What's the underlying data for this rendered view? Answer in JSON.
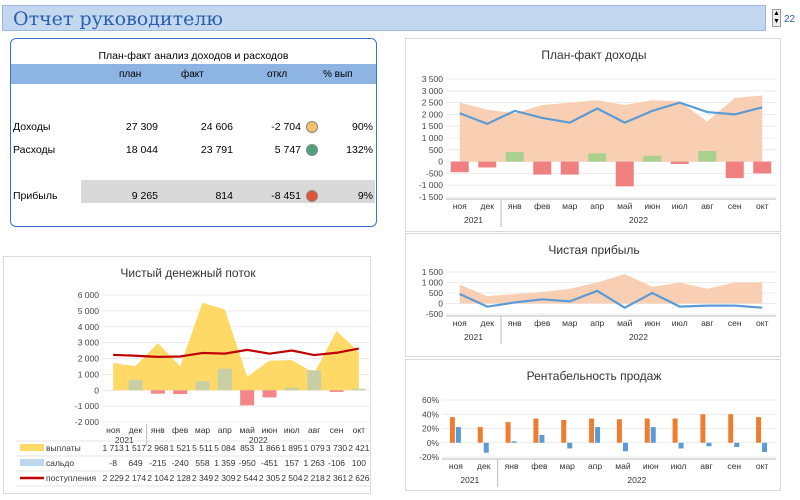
{
  "header": {
    "title": "Отчет руководителю",
    "page": "22",
    "spin_up": "▲",
    "spin_down": "▼"
  },
  "summary": {
    "title": "План-факт анализ доходов и расходов",
    "columns": [
      "план",
      "факт",
      "откл",
      "% вып"
    ],
    "rows": [
      {
        "label": "Доходы",
        "plan": "27 309",
        "fact": "24 606",
        "dev": "-2 704",
        "status": "#f2c36b",
        "pct": "90%"
      },
      {
        "label": "Расходы",
        "plan": "18 044",
        "fact": "23 791",
        "dev": "5 747",
        "status": "#4fa37b",
        "pct": "132%"
      },
      {
        "label": "Прибыль",
        "plan": "9 265",
        "fact": "814",
        "dev": "-8 451",
        "status": "#e0533a",
        "pct": "9%"
      }
    ]
  },
  "months": [
    "ноя",
    "дек",
    "янв",
    "фев",
    "мар",
    "апр",
    "май",
    "июн",
    "июл",
    "авг",
    "сен",
    "окт"
  ],
  "years": [
    "2021",
    "2022"
  ],
  "chart_data": [
    {
      "type": "area",
      "title": "План-факт доходы",
      "ylim": [
        -1500,
        3500
      ],
      "yticks": [
        "3 500",
        "3 000",
        "2 500",
        "2 000",
        "1 500",
        "1 000",
        "500",
        "0",
        "-500",
        "-1 000",
        "-1 500"
      ],
      "series": [
        {
          "name": "",
          "kind": "area",
          "values": [
            2500,
            2200,
            2050,
            2400,
            2500,
            2600,
            2400,
            2600,
            2550,
            1700,
            2700,
            2800
          ]
        },
        {
          "name": "",
          "kind": "line",
          "values": [
            2050,
            1600,
            2150,
            1850,
            1650,
            2250,
            1650,
            2150,
            2500,
            2100,
            2000,
            2300
          ]
        },
        {
          "name": "",
          "kind": "bar",
          "values": [
            -450,
            -250,
            400,
            -550,
            -550,
            350,
            -1050,
            250,
            -100,
            450,
            -700,
            -500
          ]
        }
      ],
      "colors": {
        "area": "#f9cfb4",
        "line": "#5b9bd5",
        "pos": "#a9d18e",
        "neg": "#f07f7f"
      }
    },
    {
      "type": "area",
      "title": "Чистая прибыль",
      "ylim": [
        -500,
        1500
      ],
      "yticks": [
        "1 500",
        "1 000",
        "500",
        "0",
        "-500"
      ],
      "series": [
        {
          "name": "",
          "kind": "area",
          "values": [
            900,
            350,
            450,
            550,
            700,
            1000,
            1400,
            800,
            1000,
            700,
            1000,
            1000
          ]
        },
        {
          "name": "",
          "kind": "line",
          "values": [
            450,
            -150,
            50,
            200,
            100,
            600,
            -200,
            500,
            -150,
            -100,
            -100,
            -200
          ]
        }
      ],
      "colors": {
        "area": "#f9cfb4",
        "line": "#5b9bd5"
      }
    },
    {
      "type": "bar",
      "title": "Рентабельность продаж",
      "ylim": [
        -20,
        60
      ],
      "yticks": [
        "60%",
        "40%",
        "20%",
        "0%",
        "-20%"
      ],
      "series": [
        {
          "name": "",
          "values": [
            36,
            22,
            29,
            34,
            32,
            34,
            33,
            34,
            34,
            40,
            40,
            36
          ]
        },
        {
          "name": "",
          "values": [
            22,
            -14,
            2,
            11,
            -8,
            22,
            -12,
            22,
            -8,
            -5,
            -6,
            -13
          ]
        }
      ],
      "colors": [
        "#ed7d31",
        "#5b9bd5"
      ]
    },
    {
      "type": "area",
      "title": "Чистый денежный поток",
      "ylim": [
        -2000,
        6000
      ],
      "yticks": [
        "6 000",
        "5 000",
        "4 000",
        "3 000",
        "2 000",
        "1 000",
        "0",
        "-1 000",
        "-2 000"
      ],
      "series": [
        {
          "name": "выплаты",
          "kind": "area",
          "values": [
            1713,
            1517,
            2968,
            1521,
            5511,
            5084,
            853,
            1866,
            1895,
            1079,
            3730,
            2421
          ]
        },
        {
          "name": "сальдо",
          "kind": "bar",
          "values": [
            -8,
            649,
            -215,
            -240,
            558,
            1359,
            -950,
            -451,
            157,
            1263,
            -106,
            100
          ]
        },
        {
          "name": "поступления",
          "kind": "line",
          "values": [
            2229,
            2174,
            2104,
            2128,
            2349,
            2309,
            2544,
            2305,
            2504,
            2218,
            2361,
            2626
          ]
        }
      ],
      "colors": {
        "area": "#ffd966",
        "pos": "#c9cfa5",
        "neg": "#f4868a",
        "line": "#c00000",
        "sal": "#bdd7ee"
      }
    }
  ],
  "table": {
    "rows": [
      {
        "label": "выплаты",
        "values": [
          "1 713",
          "1 517",
          "2 968",
          "1 521",
          "5 511",
          "5 084",
          "853",
          "1 866",
          "1 895",
          "1 079",
          "3 730",
          "2 421"
        ]
      },
      {
        "label": "сальдо",
        "values": [
          "-8",
          "649",
          "-215",
          "-240",
          "558",
          "1 359",
          "-950",
          "-451",
          "157",
          "1 263",
          "-106",
          "100"
        ]
      },
      {
        "label": "поступления",
        "values": [
          "2 229",
          "2 174",
          "2 104",
          "2 128",
          "2 349",
          "2 309",
          "2 544",
          "2 305",
          "2 504",
          "2 218",
          "2 361",
          "2 626"
        ]
      }
    ]
  }
}
